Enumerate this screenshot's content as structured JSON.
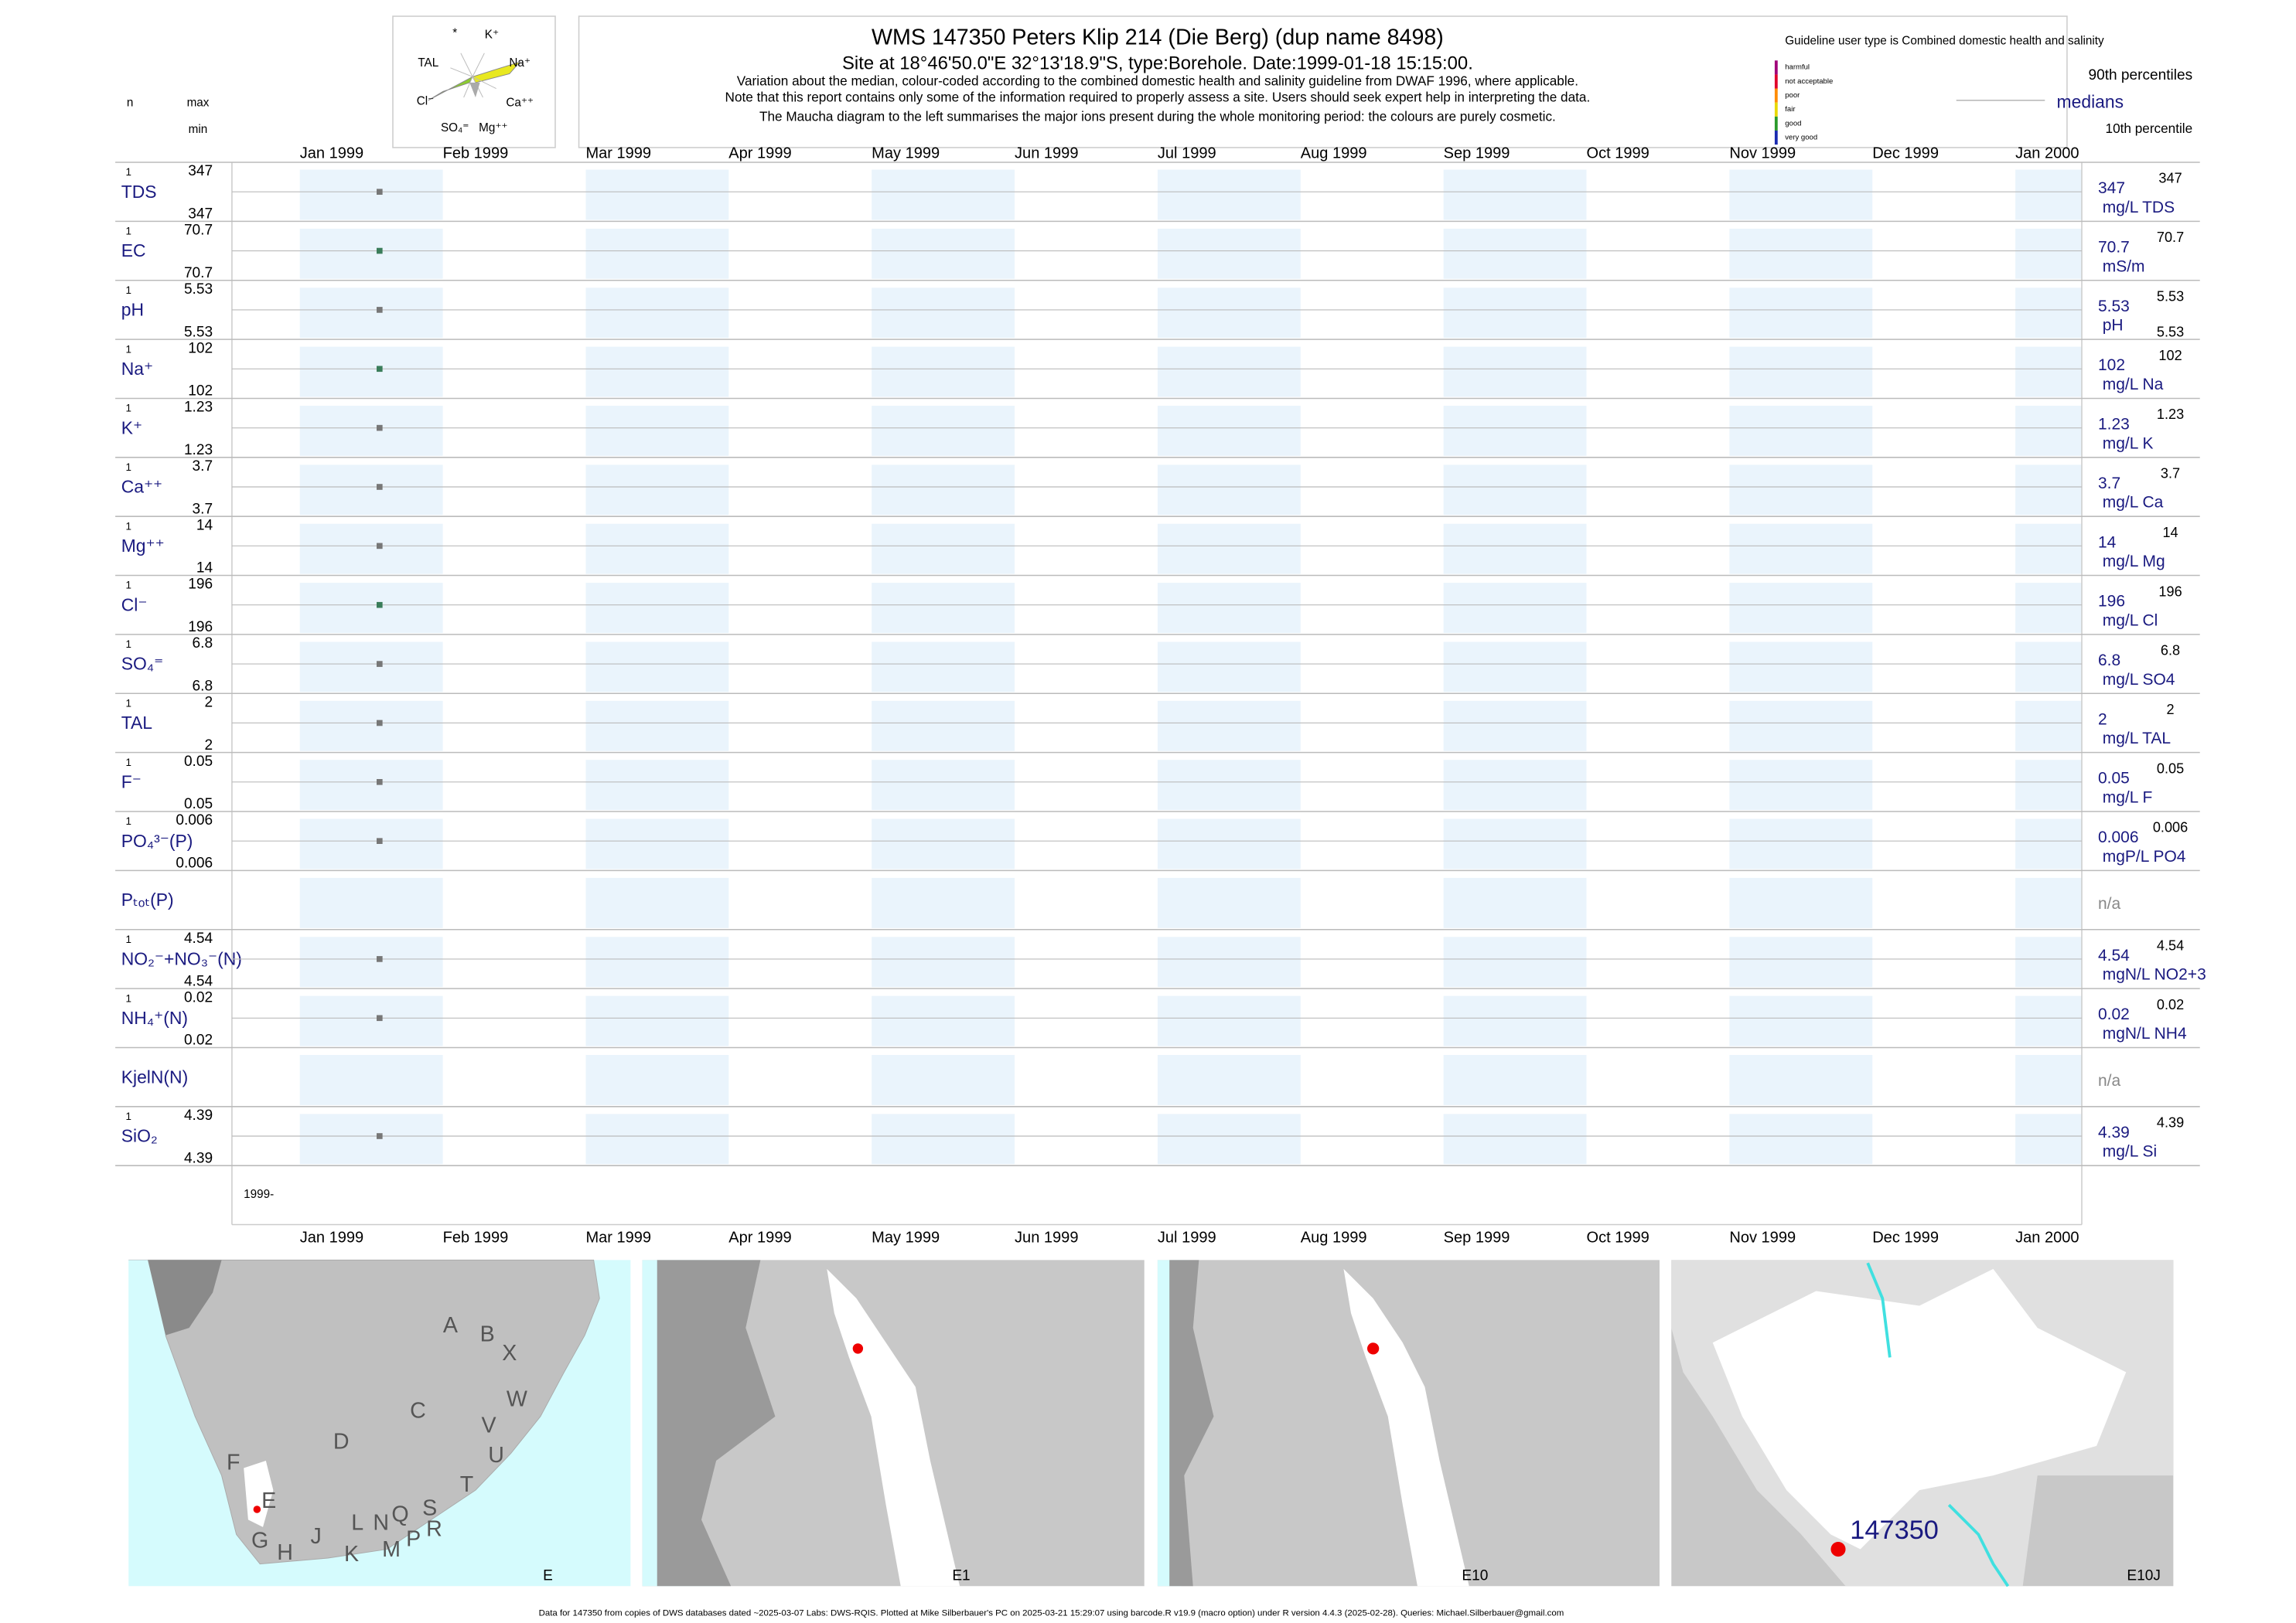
{
  "header": {
    "title": "WMS 147350  Peters Klip 214 (Die Berg) (dup name 8498)",
    "subtitle": "Site at 18°46'50.0\"E 32°13'18.9\"S, type:Borehole. Date:1999-01-18 15:15:00.",
    "notes": [
      "Variation about the median,  colour-coded according to the combined domestic health and salinity guideline from DWAF 1996, where applicable.",
      "Note that this report contains only some of the information required to properly assess a site. Users should seek expert help in interpreting the data.",
      "The Maucha diagram to the left summarises the major ions present during the whole monitoring period: the colours are purely cosmetic."
    ],
    "col_n": "n",
    "col_max": "max",
    "col_min": "min"
  },
  "maucha": {
    "labels": [
      "*",
      "K⁺",
      "TAL",
      "Na⁺",
      "Cl⁻",
      "Ca⁺⁺",
      "SO₄⁼",
      "Mg⁺⁺"
    ]
  },
  "legend": {
    "guideline": "Guideline user type is Combined domestic health and salinity",
    "classes": [
      "harmful",
      "not acceptable",
      "poor",
      "fair",
      "good",
      "very good"
    ],
    "class_colors": [
      "#a0007a",
      "#e0002a",
      "#ff8c00",
      "#e8d800",
      "#2a9a2a",
      "#1a2ab0"
    ],
    "p90": "90th percentiles",
    "median": "medians",
    "p10": "10th percentile"
  },
  "months": [
    "Jan 1999",
    "Feb 1999",
    "Mar 1999",
    "Apr 1999",
    "May 1999",
    "Jun 1999",
    "Jul 1999",
    "Aug 1999",
    "Sep 1999",
    "Oct 1999",
    "Nov 1999",
    "Dec 1999",
    "Jan 2000"
  ],
  "rows": [
    {
      "label": "TDS",
      "n": 1,
      "max": 347,
      "min": 347,
      "median": 347,
      "p90": 347,
      "p10": null,
      "unit": "mg/L TDS",
      "color": "#777777"
    },
    {
      "label": "EC",
      "n": 1,
      "max": 70.7,
      "min": 70.7,
      "median": 70.7,
      "p90": 70.7,
      "p10": null,
      "unit": "mS/m",
      "color": "#3a7d5a"
    },
    {
      "label": "pH",
      "n": 1,
      "max": 5.53,
      "min": 5.53,
      "median": 5.53,
      "p90": 5.53,
      "p10": 5.53,
      "unit": "pH",
      "color": "#777777"
    },
    {
      "label": "Na⁺",
      "n": 1,
      "max": 102,
      "min": 102,
      "median": 102,
      "p90": 102,
      "p10": null,
      "unit": "mg/L Na",
      "color": "#3a7d5a"
    },
    {
      "label": "K⁺",
      "n": 1,
      "max": 1.23,
      "min": 1.23,
      "median": 1.23,
      "p90": 1.23,
      "p10": null,
      "unit": "mg/L K",
      "color": "#777777"
    },
    {
      "label": "Ca⁺⁺",
      "n": 1,
      "max": 3.7,
      "min": 3.7,
      "median": 3.7,
      "p90": 3.7,
      "p10": null,
      "unit": "mg/L Ca",
      "color": "#777777"
    },
    {
      "label": "Mg⁺⁺",
      "n": 1,
      "max": 14,
      "min": 14,
      "median": 14,
      "p90": 14,
      "p10": null,
      "unit": "mg/L Mg",
      "color": "#777777"
    },
    {
      "label": "Cl⁻",
      "n": 1,
      "max": 196,
      "min": 196,
      "median": 196,
      "p90": 196,
      "p10": null,
      "unit": "mg/L Cl",
      "color": "#3a7d5a"
    },
    {
      "label": "SO₄⁼",
      "n": 1,
      "max": 6.8,
      "min": 6.8,
      "median": 6.8,
      "p90": 6.8,
      "p10": null,
      "unit": "mg/L SO4",
      "color": "#777777"
    },
    {
      "label": "TAL",
      "n": 1,
      "max": 2,
      "min": 2,
      "median": 2,
      "p90": 2,
      "p10": null,
      "unit": "mg/L TAL",
      "color": "#777777"
    },
    {
      "label": "F⁻",
      "n": 1,
      "max": 0.05,
      "min": 0.05,
      "median": 0.05,
      "p90": 0.05,
      "p10": null,
      "unit": "mg/L F",
      "color": "#777777"
    },
    {
      "label": "PO₄³⁻(P)",
      "n": 1,
      "max": 0.006,
      "min": 0.006,
      "median": 0.006,
      "p90": 0.006,
      "p10": null,
      "unit": "mgP/L PO4",
      "color": "#777777"
    },
    {
      "label": "Pₜₒₜ(P)",
      "n": null,
      "max": null,
      "min": null,
      "median": null,
      "p90": null,
      "p10": null,
      "unit": null,
      "na": "n/a",
      "color": "#777777"
    },
    {
      "label": "NO₂⁻+NO₃⁻(N)",
      "n": 1,
      "max": 4.54,
      "min": 4.54,
      "median": 4.54,
      "p90": 4.54,
      "p10": null,
      "unit": "mgN/L NO2+3",
      "color": "#777777"
    },
    {
      "label": "NH₄⁺(N)",
      "n": 1,
      "max": 0.02,
      "min": 0.02,
      "median": 0.02,
      "p90": 0.02,
      "p10": null,
      "unit": "mgN/L NH4",
      "color": "#777777"
    },
    {
      "label": "KjelN(N)",
      "n": null,
      "max": null,
      "min": null,
      "median": null,
      "p90": null,
      "p10": null,
      "unit": null,
      "na": "n/a",
      "color": "#777777"
    },
    {
      "label": "SiO₂",
      "n": 1,
      "max": 4.39,
      "min": 4.39,
      "median": 4.39,
      "p90": 4.39,
      "p10": null,
      "unit": "mg/L Si",
      "color": "#777777"
    }
  ],
  "year_row": "1999-",
  "maps": {
    "region_letters": [
      "A",
      "B",
      "X",
      "W",
      "C",
      "V",
      "U",
      "D",
      "T",
      "F",
      "E",
      "S",
      "R",
      "Q",
      "N",
      "L",
      "P",
      "M",
      "K",
      "J",
      "H",
      "G"
    ],
    "panel_labels": [
      "E",
      "E1",
      "E10",
      "E10J"
    ],
    "site": "147350"
  },
  "footer": "Data for 147350 from copies of DWS databases dated ~2025-03-07 Labs: DWS-RQIS. Plotted at Mike Silberbauer's PC on 2025-03-21 15:29:07 using barcode.R v19.9 (macro option) under R version 4.4.3 (2025-02-28). Queries: Michael.Silberbauer@gmail.com"
}
